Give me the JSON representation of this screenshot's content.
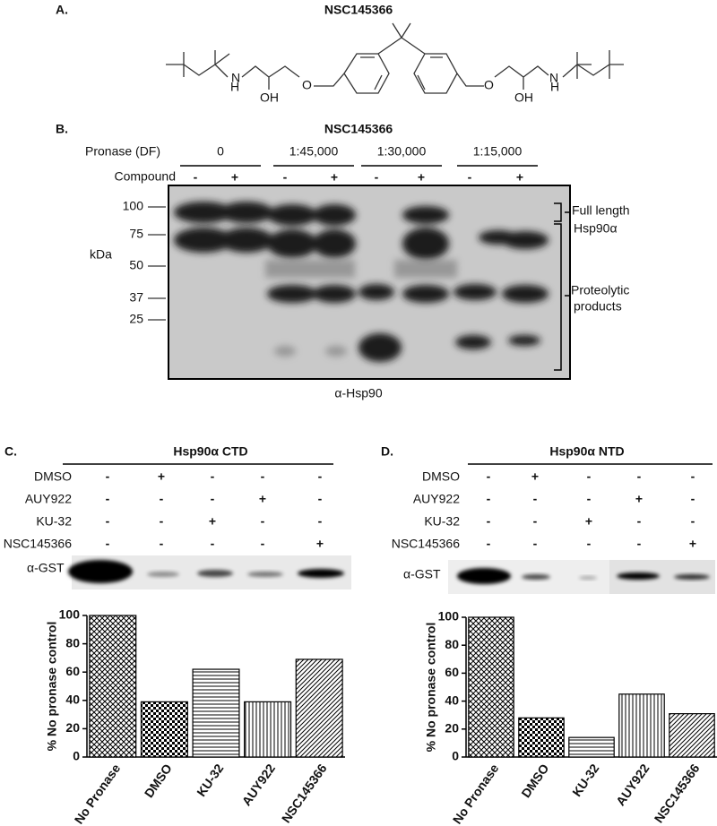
{
  "panel_a": {
    "label": "A.",
    "title": "NSC145366",
    "atoms": [
      "H",
      "N",
      "OH",
      "O",
      "O",
      "OH",
      "N",
      "H"
    ]
  },
  "panel_b": {
    "label": "B.",
    "title": "NSC145366",
    "pronase_label": "Pronase (DF)",
    "pronase": [
      "0",
      "1:45,000",
      "1:30,000",
      "1:15,000"
    ],
    "compound_label": "Compound",
    "compound": [
      "-",
      "+",
      "-",
      "+",
      "-",
      "+",
      "-",
      "+"
    ],
    "kda_label": "kDa",
    "markers": [
      100,
      75,
      50,
      37,
      25
    ],
    "full_length": [
      "Full length",
      "Hsp90α"
    ],
    "proteolytic": [
      "Proteolytic",
      "products"
    ],
    "antibody": "α-Hsp90"
  },
  "panel_c": {
    "label": "C.",
    "title": "Hsp90α CTD",
    "antibody": "α-GST",
    "rows": [
      {
        "name": "DMSO",
        "signs": [
          "-",
          "+",
          "-",
          "-",
          "-"
        ]
      },
      {
        "name": "AUY922",
        "signs": [
          "-",
          "-",
          "-",
          "+",
          "-"
        ]
      },
      {
        "name": "KU-32",
        "signs": [
          "-",
          "-",
          "+",
          "-",
          "-"
        ]
      },
      {
        "name": "NSC145366",
        "signs": [
          "-",
          "-",
          "-",
          "-",
          "+"
        ]
      }
    ]
  },
  "panel_d": {
    "label": "D.",
    "title": "Hsp90α NTD",
    "antibody": "α-GST",
    "rows": [
      {
        "name": "DMSO",
        "signs": [
          "-",
          "+",
          "-",
          "-",
          "-"
        ]
      },
      {
        "name": "AUY922",
        "signs": [
          "-",
          "-",
          "-",
          "+",
          "-"
        ]
      },
      {
        "name": "KU-32",
        "signs": [
          "-",
          "-",
          "+",
          "-",
          "-"
        ]
      },
      {
        "name": "NSC145366",
        "signs": [
          "-",
          "-",
          "-",
          "-",
          "+"
        ]
      }
    ]
  },
  "chart_data": [
    {
      "type": "bar",
      "y_label": "% No pronase control",
      "categories": [
        "No Pronase",
        "DMSO",
        "KU-32",
        "AUY922",
        "NSC145366"
      ],
      "values": [
        100,
        39,
        62,
        39,
        69
      ],
      "ylim": [
        0,
        100
      ],
      "yticks": [
        0,
        20,
        40,
        60,
        80,
        100
      ]
    },
    {
      "type": "bar",
      "y_label": "% No pronase control",
      "categories": [
        "No Pronase",
        "DMSO",
        "KU-32",
        "AUY922",
        "NSC145366"
      ],
      "values": [
        100,
        28,
        14,
        45,
        31
      ],
      "ylim": [
        0,
        100
      ],
      "yticks": [
        0,
        20,
        40,
        60,
        80,
        100
      ]
    }
  ]
}
